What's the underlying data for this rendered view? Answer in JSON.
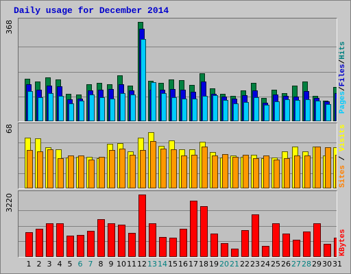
{
  "chart_data": {
    "type": "bar",
    "title": "Daily usage for December 2014",
    "categories": [
      "1",
      "2",
      "3",
      "4",
      "5",
      "6",
      "7",
      "8",
      "9",
      "10",
      "11",
      "12",
      "13",
      "14",
      "15",
      "16",
      "17",
      "18",
      "19",
      "20",
      "21",
      "22",
      "23",
      "24",
      "25",
      "26",
      "27",
      "28",
      "29",
      "30",
      "31"
    ],
    "weekend_days": [
      "6",
      "7",
      "13",
      "14",
      "20",
      "21",
      "27",
      "28"
    ],
    "panels": [
      {
        "id": "pages-files-hits",
        "ymax_label": "368",
        "ymax": 368,
        "legend": [
          {
            "name": "Pages",
            "color": "#00ccff"
          },
          {
            "name": "Files",
            "color": "#0000cc"
          },
          {
            "name": "Hits",
            "color": "#008080"
          }
        ],
        "series": [
          {
            "name": "Hits",
            "color": "#008040",
            "values": [
              158,
              148,
              163,
              156,
              101,
              98,
              138,
              142,
              137,
              171,
              132,
              368,
              150,
              142,
              155,
              152,
              134,
              178,
              121,
              102,
              94,
              113,
              142,
              86,
              118,
              104,
              132,
              148,
              94,
              77,
              126
            ]
          },
          {
            "name": "Files",
            "color": "#0000dd",
            "values": [
              138,
              118,
              132,
              130,
              80,
              83,
              115,
              118,
              120,
              138,
              115,
              342,
              118,
              116,
              120,
              116,
              109,
              146,
              102,
              92,
              85,
              97,
              114,
              68,
              100,
              94,
              92,
              112,
              86,
              73,
              105
            ]
          },
          {
            "name": "Pages",
            "color": "#00ccff",
            "values": [
              112,
              90,
              104,
              95,
              66,
              75,
              100,
              90,
              84,
              104,
              100,
              304,
              145,
              104,
              90,
              84,
              83,
              95,
              96,
              78,
              66,
              72,
              88,
              60,
              74,
              82,
              78,
              82,
              76,
              64,
              85
            ]
          }
        ]
      },
      {
        "id": "sites-visits",
        "ymax_label": "68",
        "ymax": 68,
        "legend": [
          {
            "name": "Sites",
            "color": "#ff8000"
          },
          {
            "name": "Visits",
            "color": "#ffff00"
          }
        ],
        "series": [
          {
            "name": "Visits",
            "color": "#ffff00",
            "values": [
              56,
              55,
              45,
              43,
              34,
              35,
              35,
              33,
              49,
              50,
              41,
              56,
              62,
              47,
              53,
              43,
              43,
              51,
              40,
              34,
              36,
              35,
              37,
              33,
              34,
              41,
              46,
              41,
              46,
              36,
              45
            ]
          },
          {
            "name": "Sites",
            "color": "#ff9900",
            "values": [
              42,
              41,
              43,
              33,
              36,
              36,
              32,
              35,
              42,
              44,
              37,
              42,
              52,
              44,
              43,
              36,
              37,
              46,
              36,
              38,
              35,
              37,
              33,
              36,
              32,
              33,
              36,
              36,
              46,
              45,
              37
            ]
          }
        ]
      },
      {
        "id": "kbytes",
        "ymax_label": "3220",
        "ymax": 3220,
        "legend": [
          {
            "name": "KBytes",
            "color": "#ff0000"
          }
        ],
        "series": [
          {
            "name": "KBytes",
            "color": "#ff0000",
            "values": [
              1268,
              1455,
              1730,
              1730,
              1080,
              1120,
              1359,
              1945,
              1745,
              1650,
              1230,
              3220,
              1745,
              1010,
              988,
              1440,
              2900,
              2620,
              1200,
              693,
              419,
              1390,
              2190,
              575,
              1730,
              1200,
              877,
              1310,
              1740,
              689,
              1001
            ]
          }
        ]
      }
    ]
  }
}
